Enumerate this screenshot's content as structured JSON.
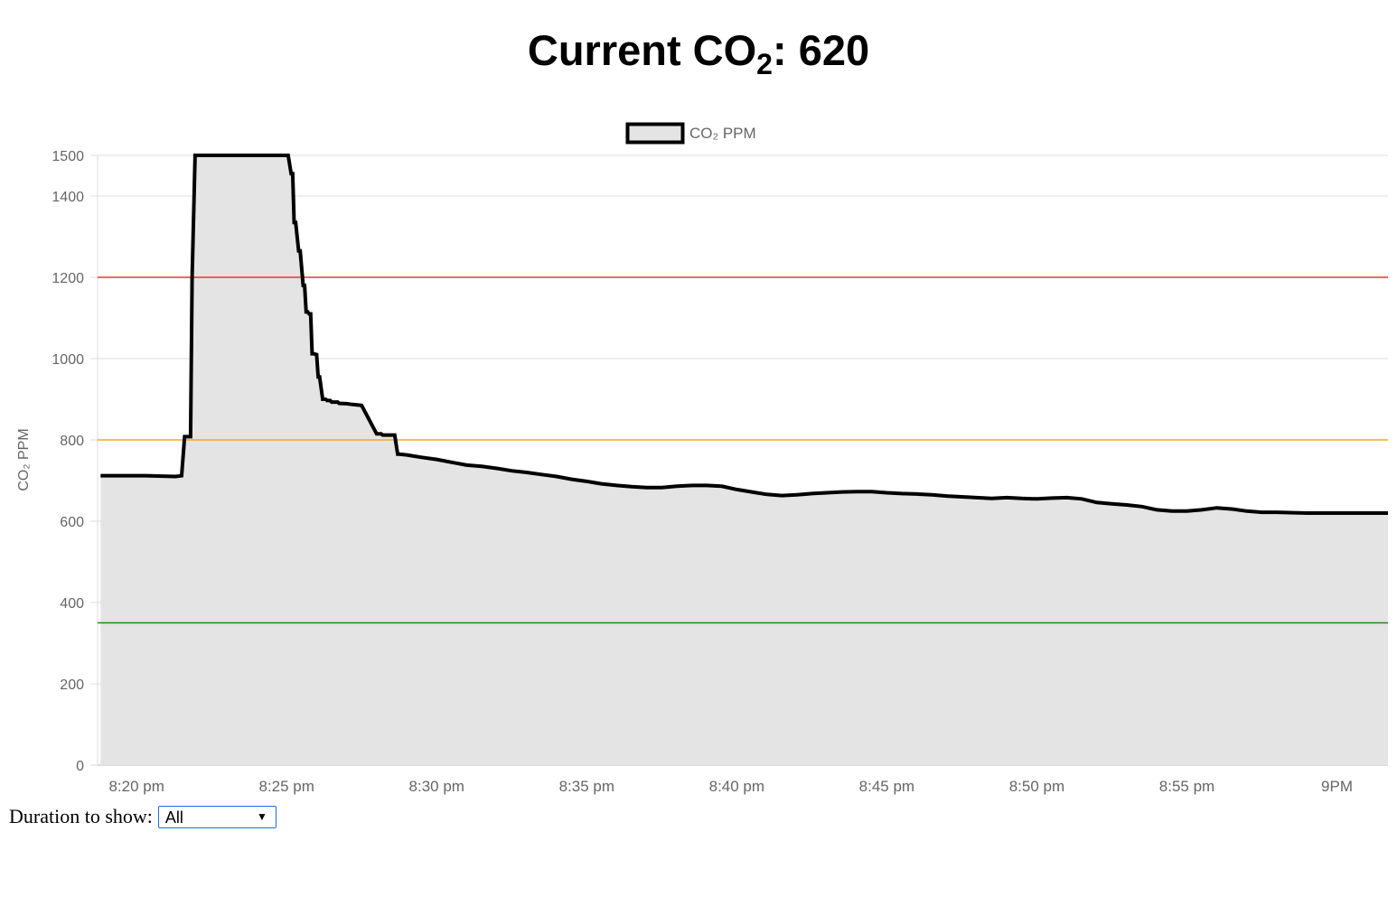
{
  "header": {
    "title_prefix": "Current CO",
    "title_subscript": "2",
    "title_suffix": ": ",
    "current_value": "620"
  },
  "controls": {
    "duration_label": "Duration to show:",
    "duration_selected": "All",
    "dropdown_icon": "chevron-down-icon"
  },
  "colors": {
    "line": "#000000",
    "fill": "#e4e4e4",
    "threshold_high": "#e53935",
    "threshold_mid": "#f5a623",
    "threshold_low": "#1b8a1b",
    "grid": "#dddddd",
    "tick_text": "#666666"
  },
  "chart_data": {
    "type": "area",
    "legend": {
      "label": "CO₂ PPM",
      "position": "top"
    },
    "ylabel": "CO₂ PPM",
    "ylim": [
      0,
      1500
    ],
    "y_ticks": [
      0,
      200,
      400,
      600,
      800,
      1000,
      1200,
      1400,
      1500
    ],
    "x_tick_labels": [
      "8:20 pm",
      "8:25 pm",
      "8:30 pm",
      "8:35 pm",
      "8:40 pm",
      "8:45 pm",
      "8:50 pm",
      "8:55 pm",
      "9PM"
    ],
    "x_tick_minutes": [
      20,
      25,
      30,
      35,
      40,
      45,
      50,
      55,
      60
    ],
    "xlim_minutes": [
      18.7,
      61.7
    ],
    "grid": true,
    "thresholds": [
      {
        "value": 1200,
        "color_key": "threshold_high"
      },
      {
        "value": 800,
        "color_key": "threshold_mid"
      },
      {
        "value": 350,
        "color_key": "threshold_low"
      }
    ],
    "series": [
      {
        "name": "CO₂ PPM",
        "x_minutes": [
          18.8,
          20.3,
          21.3,
          21.5,
          21.6,
          21.8,
          21.85,
          21.95,
          22.0,
          25.0,
          25.05,
          25.15,
          25.2,
          25.25,
          25.3,
          25.4,
          25.45,
          25.55,
          25.6,
          25.65,
          25.7,
          25.75,
          25.8,
          25.85,
          25.9,
          26.0,
          26.05,
          26.1,
          26.2,
          26.3,
          26.35,
          26.45,
          26.5,
          26.7,
          26.75,
          27.0,
          27.2,
          27.5,
          28.0,
          28.15,
          28.2,
          28.6,
          28.7,
          28.75,
          29.0,
          29.5,
          30.0,
          30.5,
          31.0,
          31.5,
          32.0,
          32.5,
          33.0,
          33.5,
          34.0,
          34.5,
          35.0,
          35.5,
          36.0,
          36.5,
          37.0,
          37.5,
          38.0,
          38.5,
          39.0,
          39.5,
          40.0,
          40.5,
          41.0,
          41.5,
          42.0,
          42.5,
          43.0,
          43.5,
          44.0,
          44.5,
          45.0,
          45.5,
          46.0,
          46.5,
          47.0,
          47.5,
          48.0,
          48.5,
          49.0,
          49.5,
          50.0,
          50.5,
          51.0,
          51.5,
          52.0,
          52.5,
          53.0,
          53.5,
          54.0,
          54.5,
          55.0,
          55.5,
          56.0,
          56.5,
          57.0,
          57.5,
          58.0,
          59.0,
          60.0,
          61.0,
          61.7
        ],
        "values": [
          712,
          712,
          710,
          712,
          808,
          808,
          1200,
          1500,
          1500,
          1500,
          1500,
          1455,
          1455,
          1335,
          1335,
          1265,
          1265,
          1180,
          1180,
          1115,
          1115,
          1110,
          1110,
          1012,
          1012,
          1010,
          955,
          955,
          900,
          900,
          897,
          897,
          893,
          893,
          890,
          889,
          887,
          885,
          815,
          815,
          812,
          812,
          765,
          765,
          763,
          757,
          752,
          745,
          738,
          735,
          730,
          724,
          720,
          715,
          710,
          703,
          698,
          692,
          688,
          685,
          683,
          683,
          686,
          688,
          688,
          686,
          678,
          672,
          666,
          663,
          665,
          668,
          670,
          672,
          673,
          673,
          670,
          668,
          667,
          665,
          662,
          660,
          658,
          656,
          658,
          656,
          655,
          657,
          658,
          655,
          646,
          643,
          640,
          636,
          628,
          625,
          625,
          628,
          633,
          630,
          625,
          622,
          622,
          620,
          620,
          620,
          620
        ]
      }
    ]
  }
}
